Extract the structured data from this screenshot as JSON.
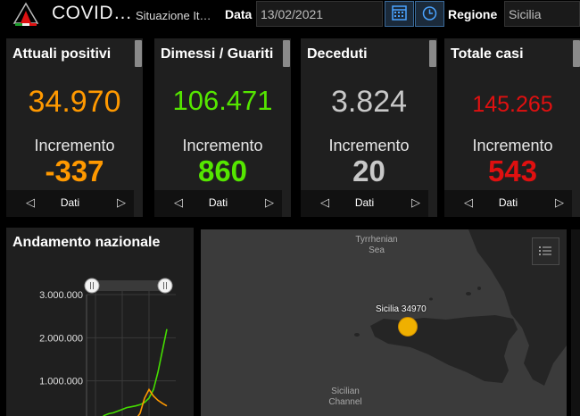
{
  "header": {
    "app_title": "COVID…",
    "subtitle": "Situazione It…",
    "date_label": "Data",
    "date_value": "13/02/2021",
    "region_label": "Regione",
    "region_value": "Sicilia"
  },
  "cards": [
    {
      "title": "Attuali positivi",
      "value": "34.970",
      "increment_label": "Incremento",
      "increment_value": "-337",
      "nav_label": "Dati",
      "color": "#ff9900"
    },
    {
      "title": "Dimessi / Guariti",
      "value": "106.471",
      "increment_label": "Incremento",
      "increment_value": "860",
      "nav_label": "Dati",
      "color": "#55e600"
    },
    {
      "title": "Deceduti",
      "value": "3.824",
      "increment_label": "Incremento",
      "increment_value": "20",
      "nav_label": "Dati",
      "color": "#c8c8c8"
    },
    {
      "title": "Totale casi",
      "value": "145.265",
      "increment_label": "Incremento",
      "increment_value": "543",
      "nav_label": "Dati",
      "color": "#e01010"
    }
  ],
  "chart_panel": {
    "title": "Andamento nazionale"
  },
  "chart_data": {
    "type": "line",
    "title": "Andamento nazionale",
    "ylim": [
      0,
      3000000
    ],
    "yticks": [
      "3.000.000",
      "2.000.000",
      "1.000.000"
    ],
    "grid": true,
    "series": [
      {
        "color": "#44dd00",
        "values": [
          0,
          20000,
          60000,
          120000,
          200000,
          240000,
          260000,
          300000,
          340000,
          380000,
          400000,
          420000,
          450000,
          500000,
          600000,
          800000,
          1200000,
          1700000,
          2200000
        ]
      },
      {
        "color": "#ff9900",
        "values": [
          0,
          60000,
          100000,
          90000,
          60000,
          40000,
          20000,
          15000,
          15000,
          20000,
          40000,
          100000,
          250000,
          600000,
          800000,
          650000,
          550000,
          480000,
          420000
        ]
      }
    ]
  },
  "map": {
    "sea_1": "Tyrrhenian\nSea",
    "sea_2": "Sicilian\nChannel",
    "marker_label": "Sicilia 34970",
    "marker_color": "#f0b000"
  },
  "icons": [
    "logo-icon",
    "calendar-icon",
    "clock-icon",
    "layer-list-icon",
    "chevron-left-icon",
    "chevron-right-icon"
  ]
}
